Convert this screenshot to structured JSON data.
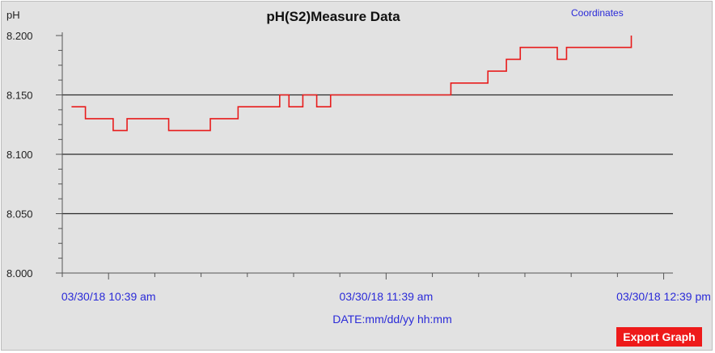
{
  "header": {
    "coordinates_label": "Coordinates"
  },
  "export_label": "Export Graph",
  "colors": {
    "line": "#e81c1c",
    "axis_text": "#2a2ad8",
    "grid": "#2b2b2b",
    "background": "#e2e2e2",
    "button": "#ee1a1a"
  },
  "chart_data": {
    "type": "line",
    "title": "pH(S2)Measure Data",
    "ylabel": "pH",
    "xlabel": "DATE:mm/dd/yy hh:mm",
    "ylim": [
      8.0,
      8.2
    ],
    "yticks": [
      "8.000",
      "8.050",
      "8.100",
      "8.150",
      "8.200"
    ],
    "xlim": [
      "03/30/18 10:29 am",
      "03/30/18 12:41 pm"
    ],
    "xticks": [
      "03/30/18 10:39 am",
      "03/30/18 11:39 am",
      "03/30/18 12:39 pm"
    ],
    "grid": "horizontal dashed at 8.050, 8.100, 8.150",
    "series": [
      {
        "step": true,
        "x": [
          "10:31",
          "10:34",
          "10:40",
          "10:43",
          "10:52",
          "10:58",
          "11:01",
          "11:07",
          "11:16",
          "11:18",
          "11:21",
          "11:24",
          "11:27",
          "11:30",
          "11:49",
          "11:53",
          "11:55",
          "11:57",
          "12:01",
          "12:04",
          "12:05",
          "12:08",
          "12:16",
          "12:18",
          "12:29",
          "12:32"
        ],
        "values": [
          8.14,
          8.13,
          8.12,
          8.13,
          8.12,
          8.12,
          8.13,
          8.14,
          8.15,
          8.14,
          8.15,
          8.14,
          8.15,
          8.15,
          8.15,
          8.16,
          8.16,
          8.16,
          8.17,
          8.17,
          8.18,
          8.19,
          8.18,
          8.19,
          8.19,
          8.2
        ]
      }
    ]
  }
}
